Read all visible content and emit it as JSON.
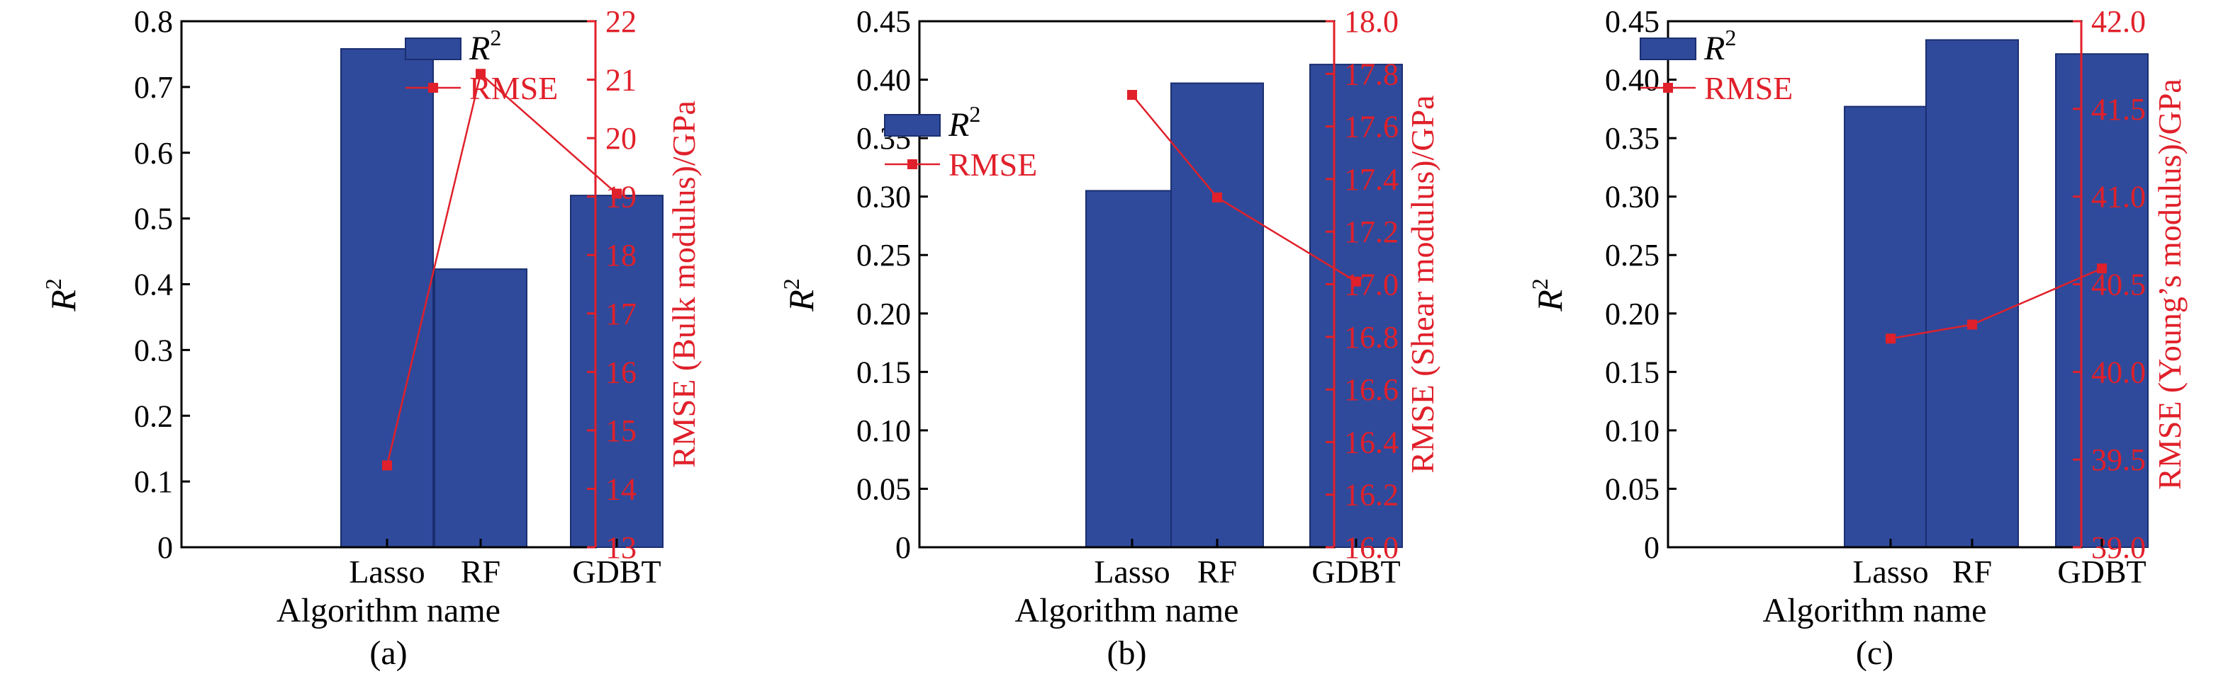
{
  "colors": {
    "bar": "#2f4a9b",
    "bar_edge": "#1b2f70",
    "rmse": "#e0202a",
    "axis": "#000000"
  },
  "chart_data": [
    {
      "panel_label": "(a)",
      "type": "bar",
      "categories": [
        "Lasso",
        "RF",
        "GDBT"
      ],
      "xlabel": "Algorithm name",
      "ylabel": "R",
      "ylabel_sup": "2",
      "ylim": [
        0,
        0.8
      ],
      "yticks": [
        "0",
        "0.1",
        "0.2",
        "0.3",
        "0.4",
        "0.5",
        "0.6",
        "0.7",
        "0.8"
      ],
      "y2label": "RMSE (Bulk modulus)/GPa",
      "y2lim": [
        13,
        22
      ],
      "y2ticks": [
        "13",
        "14",
        "15",
        "16",
        "17",
        "18",
        "19",
        "20",
        "21",
        "22"
      ],
      "legend_position": "top-right",
      "legend": {
        "bar": "R",
        "bar_sup": "2",
        "line": "RMSE"
      },
      "series": [
        {
          "name": "R2",
          "kind": "bar",
          "axis": "left",
          "values": [
            0.758,
            0.423,
            0.535
          ]
        },
        {
          "name": "RMSE",
          "kind": "line",
          "axis": "right",
          "values": [
            14.4,
            21.1,
            19.05
          ]
        }
      ]
    },
    {
      "panel_label": "(b)",
      "type": "bar",
      "categories": [
        "Lasso",
        "RF",
        "GDBT"
      ],
      "xlabel": "Algorithm name",
      "ylabel": "R",
      "ylabel_sup": "2",
      "ylim": [
        0,
        0.45
      ],
      "yticks": [
        "0",
        "0.05",
        "0.10",
        "0.15",
        "0.20",
        "0.25",
        "0.30",
        "0.35",
        "0.40",
        "0.45"
      ],
      "y2label": "RMSE (Shear modulus)/GPa",
      "y2lim": [
        16.0,
        18.0
      ],
      "y2ticks": [
        "16.0",
        "16.2",
        "16.4",
        "16.6",
        "16.8",
        "17.0",
        "17.2",
        "17.4",
        "17.6",
        "17.8",
        "18.0"
      ],
      "legend_position": "top-left",
      "legend": {
        "bar": "R",
        "bar_sup": "2",
        "line": "RMSE"
      },
      "series": [
        {
          "name": "R2",
          "kind": "bar",
          "axis": "left",
          "values": [
            0.305,
            0.397,
            0.413
          ]
        },
        {
          "name": "RMSE",
          "kind": "line",
          "axis": "right",
          "values": [
            17.72,
            17.33,
            17.01
          ]
        }
      ]
    },
    {
      "panel_label": "(c)",
      "type": "bar",
      "categories": [
        "Lasso",
        "RF",
        "GDBT"
      ],
      "xlabel": "Algorithm name",
      "ylabel": "R",
      "ylabel_sup": "2",
      "ylim": [
        0,
        0.45
      ],
      "yticks": [
        "0",
        "0.05",
        "0.10",
        "0.15",
        "0.20",
        "0.25",
        "0.30",
        "0.35",
        "0.40",
        "0.45"
      ],
      "y2label": "RMSE (Young’s modulus)/GPa",
      "y2lim": [
        39.0,
        42.0
      ],
      "y2ticks": [
        "39.0",
        "39.5",
        "40.0",
        "40.5",
        "41.0",
        "41.5",
        "42.0"
      ],
      "legend_position": "top-left",
      "legend": {
        "bar": "R",
        "bar_sup": "2",
        "line": "RMSE"
      },
      "series": [
        {
          "name": "R2",
          "kind": "bar",
          "axis": "left",
          "values": [
            0.377,
            0.434,
            0.422
          ]
        },
        {
          "name": "RMSE",
          "kind": "line",
          "axis": "right",
          "values": [
            40.19,
            40.27,
            40.59
          ]
        }
      ]
    }
  ]
}
